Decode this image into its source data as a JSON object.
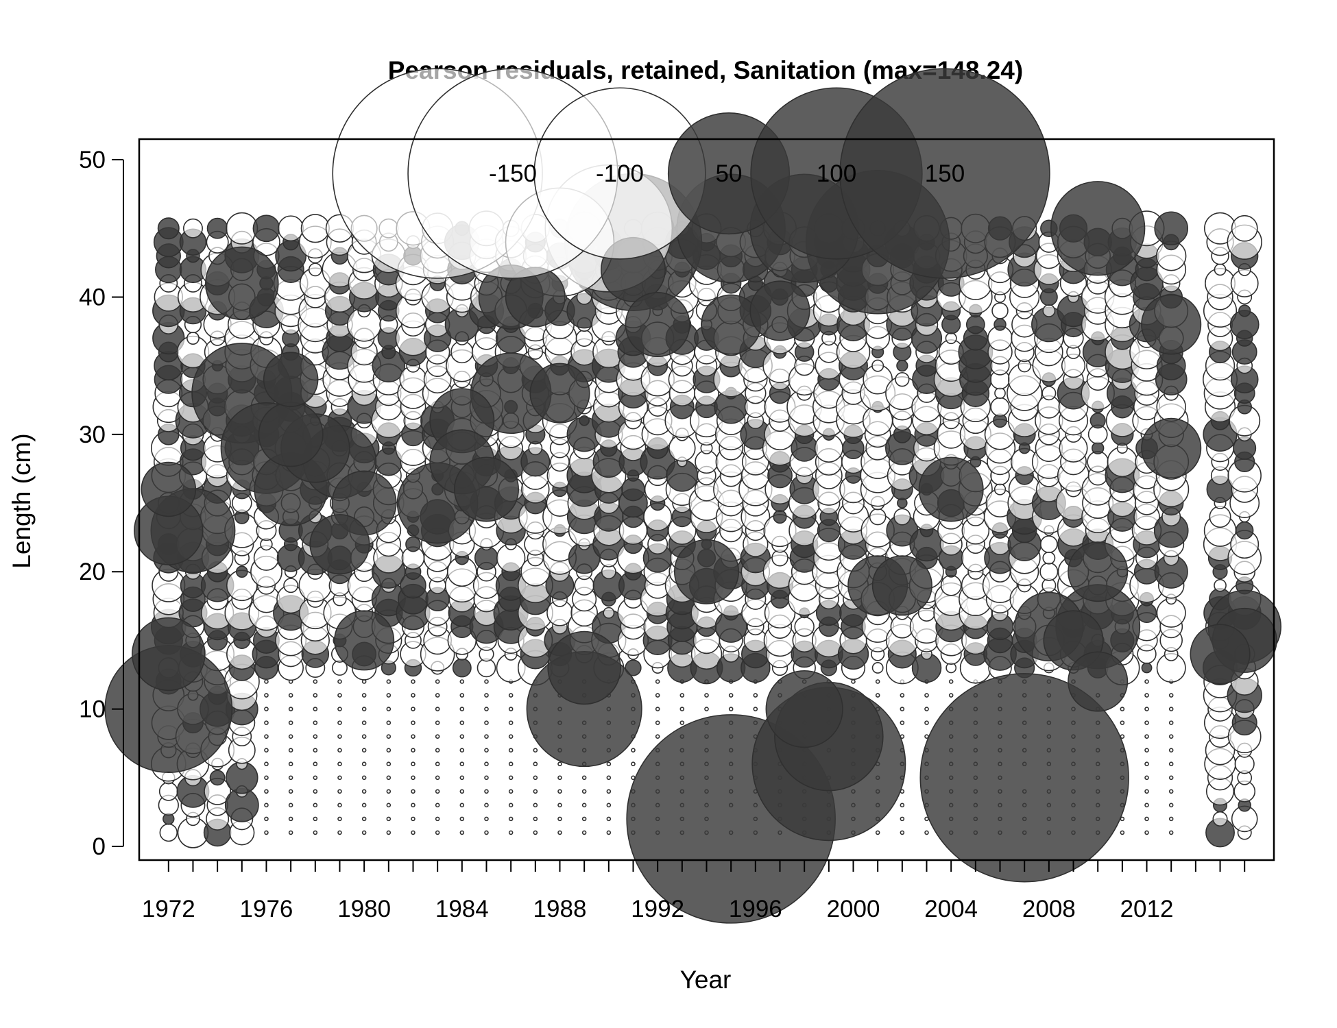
{
  "chart_data": {
    "type": "scatter",
    "subtype": "bubble",
    "title": "Pearson residuals, retained, Sanitation (max=148.24)",
    "xlabel": "Year",
    "ylabel": "Length (cm)",
    "xlim": [
      1970.8,
      2017.2
    ],
    "ylim": [
      -1,
      51.5
    ],
    "x_ticks_labeled": [
      "1972",
      "1976",
      "1980",
      "1984",
      "1988",
      "1992",
      "1996",
      "2000",
      "2004",
      "2008",
      "2012"
    ],
    "x_ticks_all": [
      1972,
      1973,
      1974,
      1975,
      1976,
      1977,
      1978,
      1979,
      1980,
      1981,
      1982,
      1983,
      1984,
      1985,
      1986,
      1987,
      1988,
      1989,
      1990,
      1991,
      1992,
      1993,
      1994,
      1995,
      1996,
      1997,
      1998,
      1999,
      2000,
      2001,
      2002,
      2003,
      2004,
      2005,
      2006,
      2007,
      2008,
      2009,
      2010,
      2011,
      2012,
      2013,
      2014,
      2015,
      2016
    ],
    "y_ticks": [
      "0",
      "10",
      "20",
      "30",
      "40",
      "50"
    ],
    "grid": false,
    "legend": {
      "placement": "top",
      "entries": [
        {
          "label": "-150",
          "value": -150
        },
        {
          "label": "-100",
          "value": -100
        },
        {
          "label": "50",
          "value": 50
        },
        {
          "label": "100",
          "value": 100
        },
        {
          "label": "150",
          "value": 150
        }
      ]
    },
    "encoding": "bubble area proportional to |residual|; filled dark = positive, open = negative",
    "years": [
      1972,
      1973,
      1974,
      1975,
      1976,
      1977,
      1978,
      1979,
      1980,
      1981,
      1982,
      1983,
      1984,
      1985,
      1986,
      1987,
      1988,
      1989,
      1990,
      1991,
      1992,
      1993,
      1994,
      1995,
      1996,
      1997,
      1998,
      1999,
      2000,
      2001,
      2002,
      2003,
      2004,
      2005,
      2006,
      2007,
      2008,
      2009,
      2010,
      2011,
      2012,
      2013,
      2015,
      2016
    ],
    "length_bins": [
      1,
      2,
      3,
      4,
      5,
      6,
      7,
      8,
      9,
      10,
      11,
      12,
      13,
      14,
      15,
      16,
      17,
      18,
      19,
      20,
      21,
      22,
      23,
      24,
      25,
      26,
      27,
      28,
      29,
      30,
      31,
      32,
      33,
      34,
      35,
      36,
      37,
      38,
      39,
      40,
      41,
      42,
      43,
      44,
      45
    ],
    "notable_residuals": [
      {
        "year": 1972,
        "length": 10,
        "value": 55
      },
      {
        "year": 1972,
        "length": 14,
        "value": 18
      },
      {
        "year": 1972,
        "length": 23,
        "value": 16
      },
      {
        "year": 1972,
        "length": 26,
        "value": 10
      },
      {
        "year": 1973,
        "length": 23,
        "value": 24
      },
      {
        "year": 1975,
        "length": 33,
        "value": 34
      },
      {
        "year": 1975,
        "length": 41,
        "value": 18
      },
      {
        "year": 1976,
        "length": 29,
        "value": 28
      },
      {
        "year": 1977,
        "length": 26,
        "value": 18
      },
      {
        "year": 1977,
        "length": 30,
        "value": 14
      },
      {
        "year": 1977,
        "length": 34,
        "value": 10
      },
      {
        "year": 1978,
        "length": 29,
        "value": 16
      },
      {
        "year": 1979,
        "length": 28,
        "value": 18
      },
      {
        "year": 1979,
        "length": 22,
        "value": 12
      },
      {
        "year": 1980,
        "length": 25,
        "value": 14
      },
      {
        "year": 1980,
        "length": 15,
        "value": 12
      },
      {
        "year": 1983,
        "length": 25,
        "value": 22
      },
      {
        "year": 1983,
        "length": 49,
        "value": -150
      },
      {
        "year": 1984,
        "length": 31,
        "value": 14
      },
      {
        "year": 1984,
        "length": 28,
        "value": 14
      },
      {
        "year": 1985,
        "length": 26,
        "value": 14
      },
      {
        "year": 1986,
        "length": 33,
        "value": 22
      },
      {
        "year": 1986,
        "length": 40,
        "value": 14
      },
      {
        "year": 1987,
        "length": 40,
        "value": 12
      },
      {
        "year": 1988,
        "length": 44,
        "value": -40
      },
      {
        "year": 1988,
        "length": 33,
        "value": 12
      },
      {
        "year": 1989,
        "length": 10,
        "value": 45
      },
      {
        "year": 1989,
        "length": 13,
        "value": 18
      },
      {
        "year": 1990,
        "length": 45,
        "value": -55
      },
      {
        "year": 1991,
        "length": 44,
        "value": 64
      },
      {
        "year": 1991,
        "length": 42,
        "value": 14
      },
      {
        "year": 1992,
        "length": 38,
        "value": 14
      },
      {
        "year": 1994,
        "length": 20,
        "value": 14
      },
      {
        "year": 1995,
        "length": 2,
        "value": 148.24
      },
      {
        "year": 1995,
        "length": 45,
        "value": 40
      },
      {
        "year": 1995,
        "length": 38,
        "value": 12
      },
      {
        "year": 1997,
        "length": 39,
        "value": 12
      },
      {
        "year": 1998,
        "length": 45,
        "value": 40
      },
      {
        "year": 1998,
        "length": 10,
        "value": 20
      },
      {
        "year": 1999,
        "length": 6,
        "value": 80
      },
      {
        "year": 1999,
        "length": 8,
        "value": 40
      },
      {
        "year": 2001,
        "length": 44,
        "value": 70
      },
      {
        "year": 2001,
        "length": 19,
        "value": 12
      },
      {
        "year": 2002,
        "length": 19,
        "value": 12
      },
      {
        "year": 2004,
        "length": 26,
        "value": 14
      },
      {
        "year": 2007,
        "length": 5,
        "value": 148
      },
      {
        "year": 2008,
        "length": 16,
        "value": 16
      },
      {
        "year": 2009,
        "length": 15,
        "value": 12
      },
      {
        "year": 2010,
        "length": 45,
        "value": 30
      },
      {
        "year": 2010,
        "length": 16,
        "value": 24
      },
      {
        "year": 2010,
        "length": 20,
        "value": 12
      },
      {
        "year": 2010,
        "length": 12,
        "value": 12
      },
      {
        "year": 2013,
        "length": 38,
        "value": 12
      },
      {
        "year": 2013,
        "length": 29,
        "value": 12
      },
      {
        "year": 2015,
        "length": 14,
        "value": 12
      },
      {
        "year": 2016,
        "length": 16,
        "value": 18
      },
      {
        "year": 2016,
        "length": 15,
        "value": 14
      }
    ]
  },
  "colors": {
    "positive_fill": "#3a3a3a",
    "negative_fill": "#ffffff",
    "stroke": "#303030",
    "frame": "#000000"
  }
}
